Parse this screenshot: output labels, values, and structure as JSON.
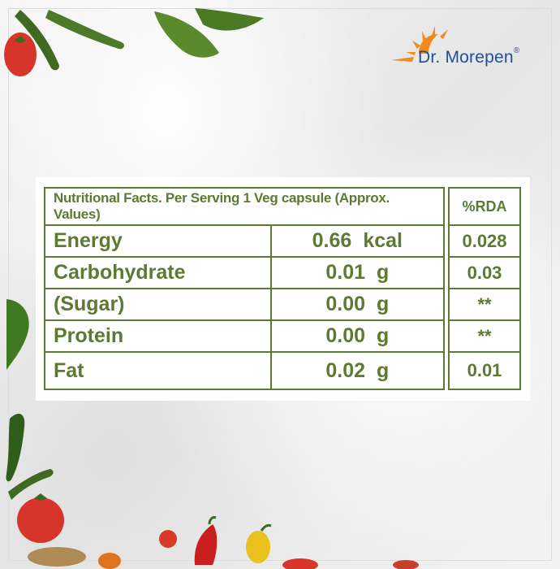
{
  "brand": {
    "name": "Dr. Morepen",
    "mark": "®",
    "colors": {
      "text": "#1f4f98",
      "sun": "#f08a1c"
    }
  },
  "table": {
    "color": "#5c7a34",
    "header": {
      "title": "Nutritional Facts. Per Serving 1 Veg capsule (Approx. Values)",
      "rda": "%RDA"
    },
    "rows": [
      {
        "name": "Energy",
        "amount": "0.66",
        "unit": "kcal",
        "rda": "0.028"
      },
      {
        "name": "Carbohydrate",
        "amount": "0.01",
        "unit": "g",
        "rda": "0.03"
      },
      {
        "name": "(Sugar)",
        "amount": "0.00",
        "unit": "g",
        "rda": "**"
      },
      {
        "name": "Protein",
        "amount": "0.00",
        "unit": "g",
        "rda": "**"
      },
      {
        "name": "Fat",
        "amount": "0.02",
        "unit": "g",
        "rda": "0.01"
      }
    ]
  },
  "decor": {
    "icons": [
      "zucchini-icon",
      "tomato-icon",
      "leaf-icon",
      "pepper-icon",
      "lemon-icon"
    ]
  }
}
